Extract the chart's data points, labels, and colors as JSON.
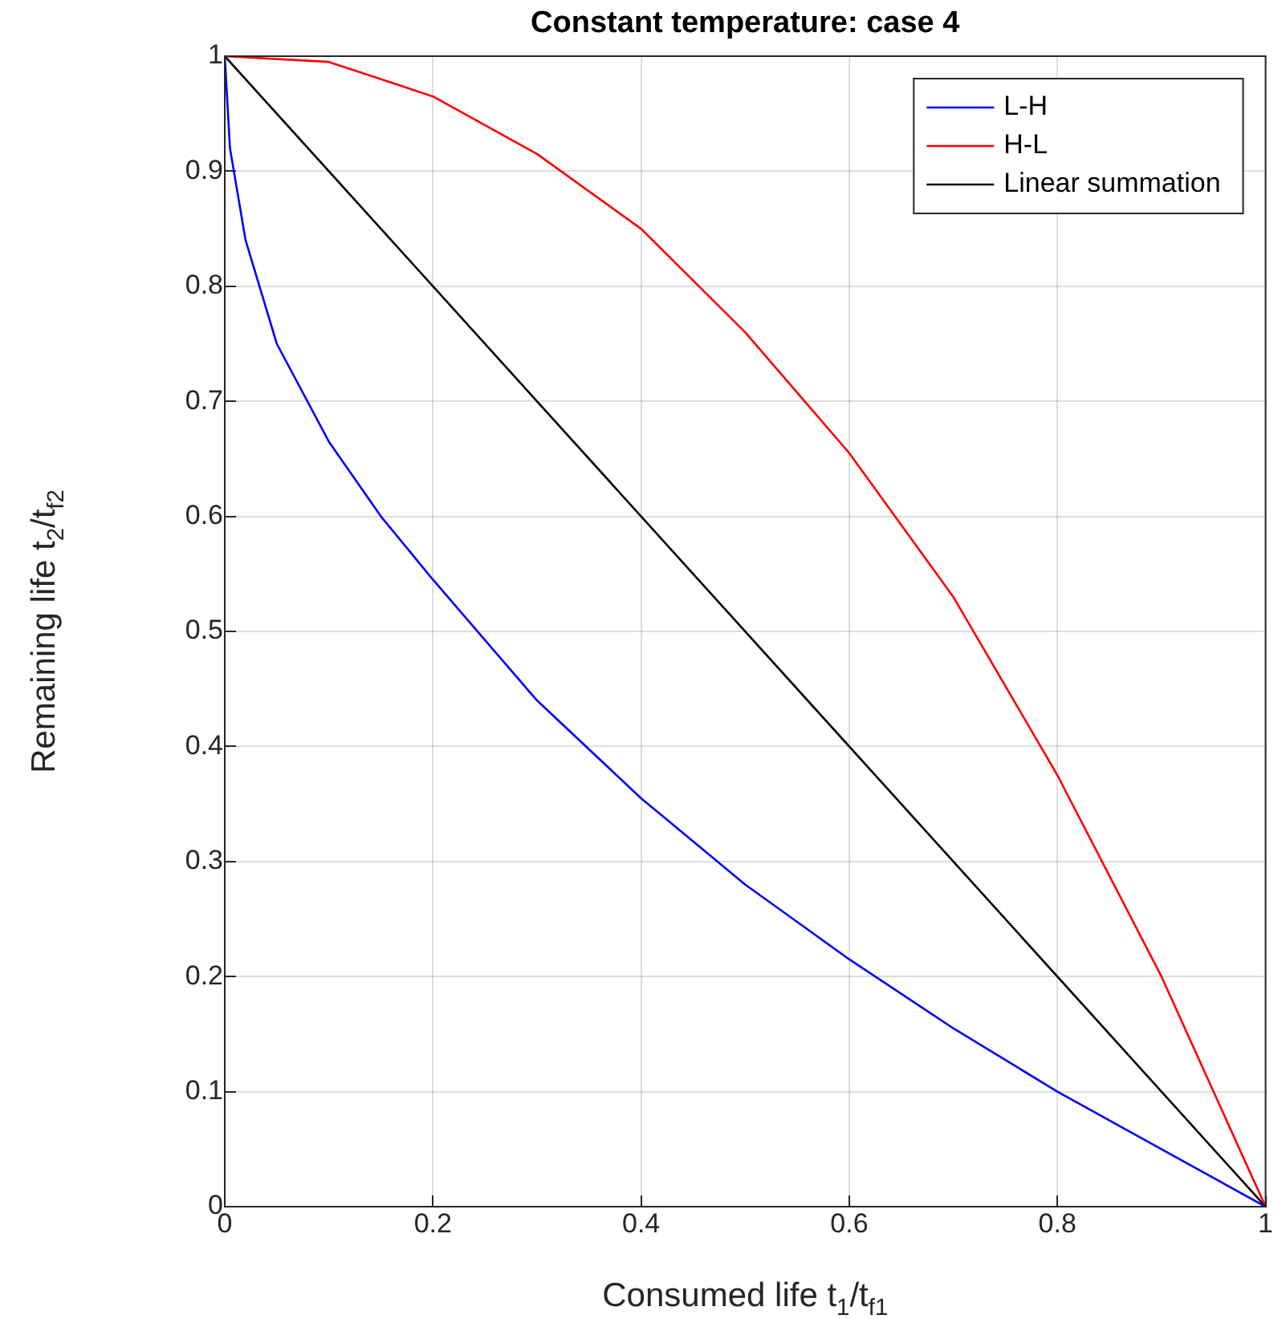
{
  "chart_data": {
    "type": "line",
    "title": "Constant temperature: case 4",
    "xlabel": "Consumed life t$_{1}$/t$_{f1}$",
    "ylabel": "Remaining life t$_{2}$/t$_{f2}$",
    "xlim": [
      0,
      1
    ],
    "xticks": [
      0,
      0.2,
      0.4,
      0.6,
      0.8,
      1
    ],
    "ylim": [
      0,
      1
    ],
    "yticks": [
      0,
      0.1,
      0.2,
      0.3,
      0.4,
      0.5,
      0.6,
      0.7,
      0.8,
      0.9,
      1
    ],
    "grid": true,
    "legend": "top right",
    "marker": "none",
    "line_style": "solid",
    "series": [
      {
        "name": "L-H",
        "color": "#0000ff",
        "x": [
          0,
          0.005,
          0.02,
          0.05,
          0.1,
          0.15,
          0.2,
          0.3,
          0.4,
          0.5,
          0.6,
          0.7,
          0.8,
          0.9,
          1
        ],
        "values": [
          1,
          0.92,
          0.84,
          0.75,
          0.665,
          0.6,
          0.545,
          0.44,
          0.355,
          0.28,
          0.215,
          0.155,
          0.1,
          0.05,
          0
        ]
      },
      {
        "name": "H-L",
        "color": "#ff0000",
        "x": [
          0,
          0.1,
          0.2,
          0.3,
          0.4,
          0.5,
          0.6,
          0.7,
          0.8,
          0.9,
          1
        ],
        "values": [
          1,
          0.995,
          0.965,
          0.915,
          0.85,
          0.76,
          0.655,
          0.53,
          0.375,
          0.2,
          0
        ]
      },
      {
        "name": "Linear summation",
        "color": "#000000",
        "x": [
          0,
          1
        ],
        "values": [
          1,
          0
        ]
      }
    ]
  }
}
